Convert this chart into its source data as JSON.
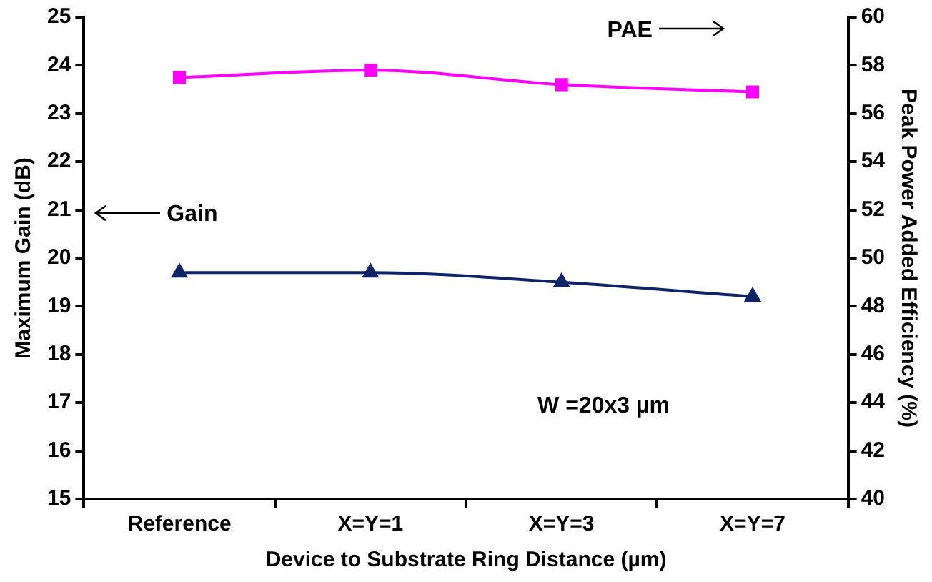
{
  "chart_data": {
    "type": "line",
    "xlabel": "Device to Substrate Ring Distance (µm)",
    "ylabel": "Maximum Gain (dB)",
    "y2label": "Peak Power Added Efficiency (%)",
    "categories": [
      "Reference",
      "X=Y=1",
      "X=Y=3",
      "X=Y=7"
    ],
    "series": [
      {
        "name": "Gain",
        "color": "#0f2466",
        "marker": "triangle",
        "values": [
          19.7,
          19.7,
          19.5,
          19.2
        ]
      },
      {
        "name": "PAE",
        "color": "#ff00ff",
        "marker": "square",
        "axis": "y2",
        "values": [
          57.5,
          57.8,
          57.2,
          56.9
        ]
      }
    ],
    "ylim": [
      15,
      25
    ],
    "yticks": [
      15,
      16,
      17,
      18,
      19,
      20,
      21,
      22,
      23,
      24,
      25
    ],
    "y2lim": [
      40,
      60
    ],
    "y2ticks": [
      40,
      42,
      44,
      46,
      48,
      50,
      52,
      54,
      56,
      58,
      60
    ],
    "annotations": [
      "W =20x3 µm"
    ],
    "grid": false,
    "legend": false
  }
}
